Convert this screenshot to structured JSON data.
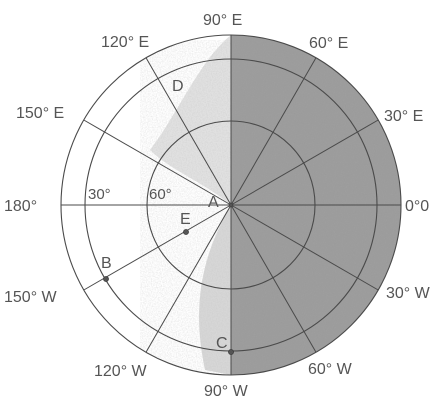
{
  "longitude_labels": {
    "deg0": "0°0",
    "deg30E": "30° E",
    "deg60E": "60° E",
    "deg90E": "90° E",
    "deg120E": "120° E",
    "deg150E": "150° E",
    "deg180": "180°",
    "deg150W": "150° W",
    "deg120W": "120° W",
    "deg90W": "90° W",
    "deg60W": "60° W",
    "deg30W": "30° W"
  },
  "latitude_labels": {
    "lat30": "30°",
    "lat60": "60°"
  },
  "points": {
    "A": "A",
    "B": "B",
    "C": "C",
    "D": "D",
    "E": "E"
  },
  "colors": {
    "shading": "#8f8f8f",
    "lines": "#4a4a4a",
    "text": "#555555"
  }
}
